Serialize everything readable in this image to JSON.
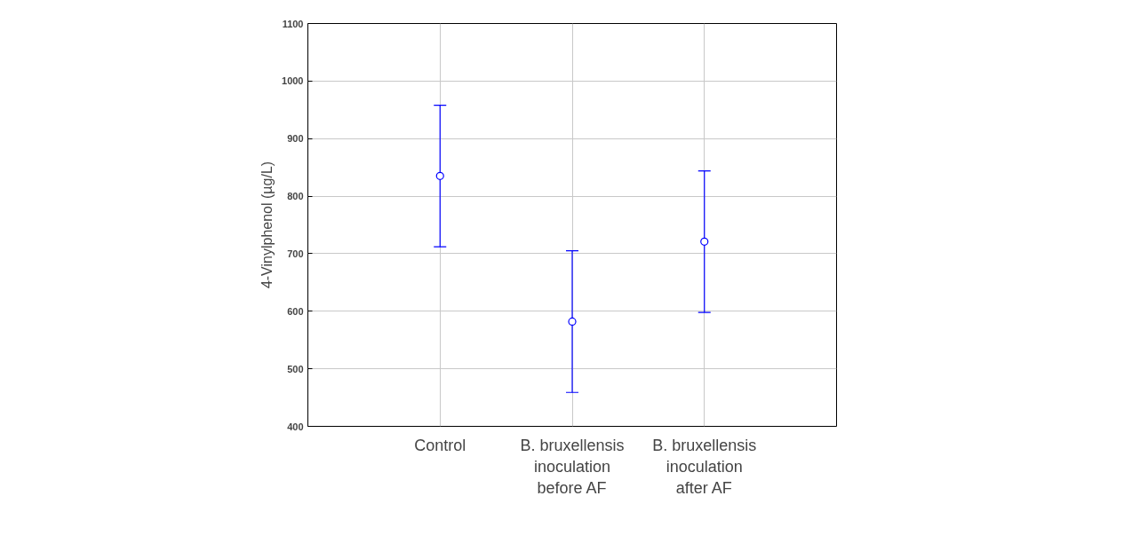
{
  "chart_data": {
    "type": "scatter",
    "ylabel": "4-Vinylphenol (µg/L)",
    "categories": [
      "Control",
      "B. bruxellensis\ninoculation\nbefore AF",
      "B. bruxellensis\ninoculation\nafter AF"
    ],
    "series": [
      {
        "color": "#0000ff",
        "values": [
          835,
          582,
          721
        ],
        "errors": [
          123,
          123,
          123
        ]
      }
    ],
    "ylim": [
      400,
      1100
    ],
    "yticks": [
      400,
      500,
      600,
      700,
      800,
      900,
      1000,
      1100
    ],
    "grid": true,
    "marker": "circle"
  }
}
